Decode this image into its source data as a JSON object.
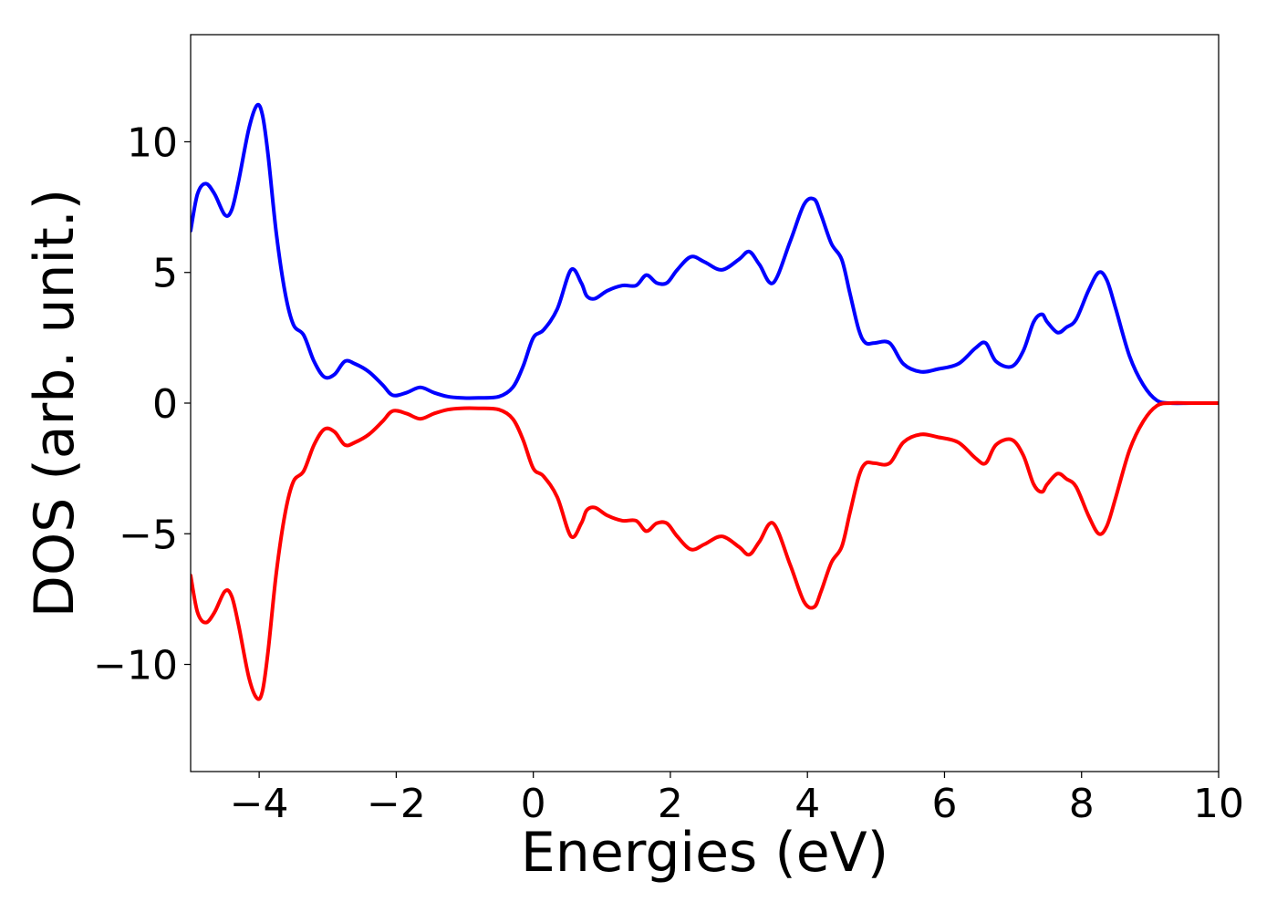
{
  "chart_data": {
    "type": "line",
    "title": "",
    "xlabel": "Energies (eV)",
    "ylabel": "DOS (arb. unit.)",
    "xlim": [
      -5,
      10
    ],
    "ylim": [
      -14.1,
      14.1
    ],
    "grid": false,
    "legend": "none",
    "x_ticks": [
      -4,
      -2,
      0,
      2,
      4,
      6,
      8,
      10
    ],
    "x_tick_labels": [
      "−4",
      "−2",
      "0",
      "2",
      "4",
      "6",
      "8",
      "10"
    ],
    "y_ticks": [
      10,
      5,
      0,
      -5,
      -10
    ],
    "y_tick_labels": [
      "10",
      "5",
      "0",
      "−5",
      "−10"
    ],
    "series": [
      {
        "color": "#0000ff",
        "x": [
          -5.0,
          -4.9,
          -4.78,
          -4.65,
          -4.5,
          -4.4,
          -4.3,
          -4.15,
          -4.03,
          -3.95,
          -3.87,
          -3.75,
          -3.62,
          -3.5,
          -3.35,
          -3.2,
          -3.05,
          -2.9,
          -2.75,
          -2.6,
          -2.4,
          -2.2,
          -2.05,
          -1.85,
          -1.65,
          -1.45,
          -1.25,
          -1.05,
          -0.8,
          -0.5,
          -0.3,
          -0.15,
          0.0,
          0.15,
          0.35,
          0.55,
          0.7,
          0.78,
          0.9,
          1.08,
          1.3,
          1.5,
          1.65,
          1.8,
          1.95,
          2.1,
          2.3,
          2.5,
          2.75,
          3.0,
          3.15,
          3.3,
          3.5,
          3.75,
          3.95,
          4.1,
          4.2,
          4.35,
          4.5,
          4.62,
          4.75,
          4.85,
          4.98,
          5.2,
          5.4,
          5.65,
          5.9,
          6.2,
          6.45,
          6.6,
          6.75,
          6.98,
          7.15,
          7.3,
          7.42,
          7.5,
          7.65,
          7.78,
          7.92,
          8.1,
          8.25,
          8.37,
          8.5,
          8.7,
          8.9,
          9.1,
          9.3,
          9.6,
          10.0
        ],
        "values": [
          6.6,
          8.0,
          8.4,
          8.0,
          7.2,
          7.4,
          8.5,
          10.5,
          11.4,
          11.0,
          9.5,
          6.5,
          4.2,
          3.0,
          2.6,
          1.6,
          1.0,
          1.1,
          1.6,
          1.5,
          1.2,
          0.7,
          0.3,
          0.4,
          0.6,
          0.4,
          0.25,
          0.2,
          0.2,
          0.25,
          0.6,
          1.4,
          2.5,
          2.8,
          3.6,
          5.1,
          4.6,
          4.1,
          4.0,
          4.3,
          4.5,
          4.5,
          4.9,
          4.6,
          4.6,
          5.1,
          5.6,
          5.4,
          5.1,
          5.5,
          5.8,
          5.3,
          4.6,
          6.2,
          7.6,
          7.8,
          7.2,
          6.1,
          5.5,
          4.2,
          2.8,
          2.3,
          2.3,
          2.3,
          1.5,
          1.2,
          1.3,
          1.5,
          2.1,
          2.3,
          1.6,
          1.4,
          2.0,
          3.1,
          3.4,
          3.1,
          2.7,
          2.9,
          3.2,
          4.3,
          5.0,
          4.7,
          3.6,
          1.8,
          0.7,
          0.1,
          0.0,
          0.0,
          0.0
        ]
      },
      {
        "color": "#ff0000",
        "x": [
          -5.0,
          -4.9,
          -4.78,
          -4.65,
          -4.5,
          -4.4,
          -4.3,
          -4.15,
          -4.03,
          -3.95,
          -3.87,
          -3.75,
          -3.62,
          -3.5,
          -3.35,
          -3.2,
          -3.05,
          -2.9,
          -2.75,
          -2.6,
          -2.4,
          -2.2,
          -2.05,
          -1.85,
          -1.65,
          -1.45,
          -1.25,
          -1.05,
          -0.8,
          -0.5,
          -0.3,
          -0.15,
          0.0,
          0.15,
          0.35,
          0.55,
          0.7,
          0.78,
          0.9,
          1.08,
          1.3,
          1.5,
          1.65,
          1.8,
          1.95,
          2.1,
          2.3,
          2.5,
          2.75,
          3.0,
          3.15,
          3.3,
          3.5,
          3.75,
          3.95,
          4.1,
          4.2,
          4.35,
          4.5,
          4.62,
          4.75,
          4.85,
          4.98,
          5.2,
          5.4,
          5.65,
          5.9,
          6.2,
          6.45,
          6.6,
          6.75,
          6.98,
          7.15,
          7.3,
          7.42,
          7.5,
          7.65,
          7.78,
          7.92,
          8.1,
          8.25,
          8.37,
          8.5,
          8.7,
          8.9,
          9.1,
          9.3,
          9.6,
          10.0
        ],
        "values": [
          -6.6,
          -8.0,
          -8.4,
          -8.0,
          -7.2,
          -7.4,
          -8.5,
          -10.5,
          -11.3,
          -11.0,
          -9.5,
          -6.5,
          -4.2,
          -3.0,
          -2.6,
          -1.6,
          -1.0,
          -1.1,
          -1.6,
          -1.5,
          -1.2,
          -0.7,
          -0.3,
          -0.4,
          -0.6,
          -0.4,
          -0.25,
          -0.2,
          -0.2,
          -0.25,
          -0.6,
          -1.4,
          -2.5,
          -2.8,
          -3.6,
          -5.1,
          -4.6,
          -4.1,
          -4.0,
          -4.3,
          -4.5,
          -4.5,
          -4.9,
          -4.6,
          -4.6,
          -5.1,
          -5.6,
          -5.4,
          -5.1,
          -5.5,
          -5.8,
          -5.3,
          -4.6,
          -6.2,
          -7.6,
          -7.8,
          -7.2,
          -6.1,
          -5.5,
          -4.2,
          -2.8,
          -2.3,
          -2.3,
          -2.3,
          -1.5,
          -1.2,
          -1.3,
          -1.5,
          -2.1,
          -2.3,
          -1.6,
          -1.4,
          -2.0,
          -3.1,
          -3.4,
          -3.1,
          -2.7,
          -2.9,
          -3.2,
          -4.3,
          -5.0,
          -4.7,
          -3.6,
          -1.8,
          -0.7,
          -0.1,
          0.0,
          0.0,
          0.0
        ]
      }
    ]
  }
}
